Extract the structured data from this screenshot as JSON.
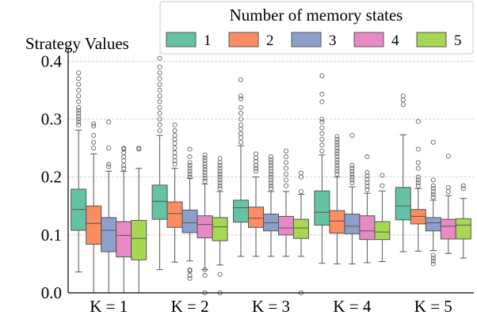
{
  "chart_data": {
    "type": "box",
    "title": "Strategy Values",
    "xlabel": "",
    "ylabel": "",
    "ylim": [
      0,
      0.41
    ],
    "yticks": [
      0.0,
      0.1,
      0.2,
      0.3,
      0.4
    ],
    "ytick_labels": [
      "0.0",
      "0.1",
      "0.2",
      "0.3",
      "0.4"
    ],
    "categories": [
      "K = 1",
      "K = 2",
      "K = 3",
      "K = 4",
      "K = 5"
    ],
    "grid": "horizontal-dashed",
    "legend": {
      "title": "Number of memory states",
      "placement": "top-right",
      "entries": [
        "1",
        "2",
        "3",
        "4",
        "5"
      ]
    },
    "series": [
      {
        "name": "1",
        "color": "#66c2a5",
        "boxes": [
          {
            "whislo": 0.036,
            "q1": 0.108,
            "med": 0.144,
            "q3": 0.179,
            "whishi": 0.281,
            "fliers": [
              0.29,
              0.295,
              0.3,
              0.305,
              0.31,
              0.315,
              0.32,
              0.33,
              0.34,
              0.35,
              0.36,
              0.37,
              0.38
            ]
          },
          {
            "whislo": 0.04,
            "q1": 0.127,
            "med": 0.158,
            "q3": 0.186,
            "whishi": 0.272,
            "fliers": [
              0.28,
              0.29,
              0.3,
              0.31,
              0.32,
              0.33,
              0.34,
              0.35,
              0.36,
              0.37,
              0.38,
              0.39,
              0.405
            ]
          },
          {
            "whislo": 0.063,
            "q1": 0.122,
            "med": 0.147,
            "q3": 0.16,
            "whishi": 0.254,
            "fliers": [
              0.26,
              0.268,
              0.275,
              0.283,
              0.29,
              0.3,
              0.31,
              0.32,
              0.335,
              0.34,
              0.368
            ]
          },
          {
            "whislo": 0.051,
            "q1": 0.117,
            "med": 0.139,
            "q3": 0.176,
            "whishi": 0.238,
            "fliers": [
              0.245,
              0.255,
              0.265,
              0.275,
              0.285,
              0.295,
              0.3,
              0.33,
              0.343,
              0.375
            ]
          },
          {
            "whislo": 0.071,
            "q1": 0.126,
            "med": 0.15,
            "q3": 0.182,
            "whishi": 0.273,
            "fliers": [
              0.325,
              0.333,
              0.34
            ]
          }
        ]
      },
      {
        "name": "2",
        "color": "#fc8d62",
        "boxes": [
          {
            "whislo": 0.0,
            "q1": 0.084,
            "med": 0.12,
            "q3": 0.15,
            "whishi": 0.24,
            "fliers": [
              0.25,
              0.26,
              0.272,
              0.288,
              0.292
            ]
          },
          {
            "whislo": 0.053,
            "q1": 0.113,
            "med": 0.137,
            "q3": 0.157,
            "whishi": 0.215,
            "fliers": [
              0.222,
              0.228,
              0.235,
              0.242,
              0.25,
              0.258,
              0.265,
              0.272,
              0.28,
              0.29
            ]
          },
          {
            "whislo": 0.063,
            "q1": 0.113,
            "med": 0.129,
            "q3": 0.148,
            "whishi": 0.2,
            "fliers": [
              0.21,
              0.215,
              0.22,
              0.227,
              0.233,
              0.24
            ]
          },
          {
            "whislo": 0.05,
            "q1": 0.103,
            "med": 0.124,
            "q3": 0.142,
            "whishi": 0.2,
            "fliers": [
              0.205,
              0.21,
              0.215,
              0.22,
              0.225,
              0.23,
              0.235,
              0.24,
              0.245,
              0.25,
              0.255,
              0.26,
              0.265,
              0.27
            ]
          },
          {
            "whislo": 0.072,
            "q1": 0.119,
            "med": 0.132,
            "q3": 0.144,
            "whishi": 0.18,
            "fliers": [
              0.185,
              0.19,
              0.195,
              0.2,
              0.215,
              0.225,
              0.248,
              0.296
            ]
          }
        ]
      },
      {
        "name": "3",
        "color": "#8da0cb",
        "boxes": [
          {
            "whislo": 0.0,
            "q1": 0.071,
            "med": 0.108,
            "q3": 0.13,
            "whishi": 0.21,
            "fliers": [
              0.218,
              0.222,
              0.25,
              0.295
            ]
          },
          {
            "whislo": 0.055,
            "q1": 0.104,
            "med": 0.121,
            "q3": 0.143,
            "whishi": 0.198,
            "fliers": [
              0.2,
              0.205,
              0.21,
              0.215,
              0.22,
              0.225,
              0.235,
              0.248,
              0.04,
              0.038,
              0.03,
              0.025
            ]
          },
          {
            "whislo": 0.063,
            "q1": 0.107,
            "med": 0.121,
            "q3": 0.136,
            "whishi": 0.175,
            "fliers": [
              0.18,
              0.185,
              0.19,
              0.195,
              0.2,
              0.205,
              0.21,
              0.215,
              0.22,
              0.225,
              0.23,
              0.235
            ]
          },
          {
            "whislo": 0.05,
            "q1": 0.102,
            "med": 0.115,
            "q3": 0.136,
            "whishi": 0.183,
            "fliers": [
              0.19,
              0.195,
              0.2,
              0.205,
              0.21,
              0.215,
              0.22,
              0.272
            ]
          },
          {
            "whislo": 0.073,
            "q1": 0.107,
            "med": 0.121,
            "q3": 0.13,
            "whishi": 0.16,
            "fliers": [
              0.165,
              0.17,
              0.175,
              0.18,
              0.185,
              0.195,
              0.26,
              0.05,
              0.055,
              0.06,
              0.065
            ]
          }
        ]
      },
      {
        "name": "4",
        "color": "#e78ac3",
        "boxes": [
          {
            "whislo": 0.0,
            "q1": 0.062,
            "med": 0.099,
            "q3": 0.123,
            "whishi": 0.21,
            "fliers": [
              0.215,
              0.22,
              0.228,
              0.235,
              0.242,
              0.248,
              0.25
            ]
          },
          {
            "whislo": 0.04,
            "q1": 0.095,
            "med": 0.118,
            "q3": 0.133,
            "whishi": 0.188,
            "fliers": [
              0.193,
              0.198,
              0.203,
              0.208,
              0.213,
              0.218,
              0.223,
              0.228,
              0.233,
              0.238,
              0.0,
              0.03,
              0.04
            ]
          },
          {
            "whislo": 0.063,
            "q1": 0.1,
            "med": 0.112,
            "q3": 0.132,
            "whishi": 0.175,
            "fliers": [
              0.185,
              0.195,
              0.205,
              0.215,
              0.225,
              0.235,
              0.245
            ]
          },
          {
            "whislo": 0.052,
            "q1": 0.092,
            "med": 0.107,
            "q3": 0.133,
            "whishi": 0.172,
            "fliers": [
              0.178,
              0.184,
              0.19,
              0.196,
              0.202,
              0.208,
              0.235
            ]
          },
          {
            "whislo": 0.068,
            "q1": 0.093,
            "med": 0.115,
            "q3": 0.127,
            "whishi": 0.168,
            "fliers": [
              0.175,
              0.182,
              0.236
            ]
          }
        ]
      },
      {
        "name": "5",
        "color": "#a6d854",
        "boxes": [
          {
            "whislo": 0.0,
            "q1": 0.057,
            "med": 0.094,
            "q3": 0.125,
            "whishi": 0.215,
            "fliers": [
              0.248,
              0.25
            ]
          },
          {
            "whislo": 0.048,
            "q1": 0.09,
            "med": 0.114,
            "q3": 0.13,
            "whishi": 0.175,
            "fliers": [
              0.18,
              0.185,
              0.19,
              0.195,
              0.2,
              0.205,
              0.21,
              0.215,
              0.22,
              0.225,
              0.232,
              0.032,
              0.0
            ]
          },
          {
            "whislo": 0.063,
            "q1": 0.094,
            "med": 0.112,
            "q3": 0.127,
            "whishi": 0.17,
            "fliers": [
              0.175,
              0.2,
              0.207,
              0.0
            ]
          },
          {
            "whislo": 0.054,
            "q1": 0.092,
            "med": 0.105,
            "q3": 0.123,
            "whishi": 0.176,
            "fliers": [
              0.185,
              0.203
            ]
          },
          {
            "whislo": 0.06,
            "q1": 0.093,
            "med": 0.117,
            "q3": 0.128,
            "whishi": 0.163,
            "fliers": [
              0.18,
              0.185
            ]
          }
        ]
      }
    ]
  }
}
